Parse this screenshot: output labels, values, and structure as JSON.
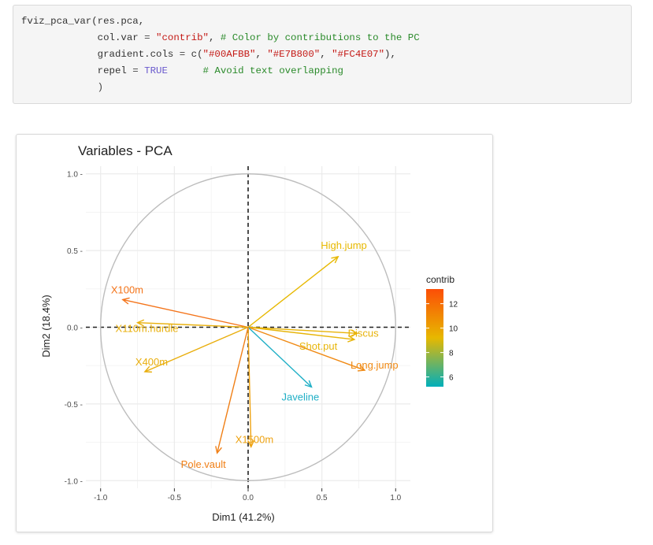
{
  "code": {
    "lines": [
      [
        {
          "t": "fviz_pca_var(res.pca,",
          "c": "fn"
        }
      ],
      [
        {
          "t": "             col.var ",
          "c": "fn"
        },
        {
          "t": "= ",
          "c": "op"
        },
        {
          "t": "\"contrib\"",
          "c": "str"
        },
        {
          "t": ", ",
          "c": "fn"
        },
        {
          "t": "# Color by contributions to the PC",
          "c": "com"
        }
      ],
      [
        {
          "t": "             gradient.cols ",
          "c": "fn"
        },
        {
          "t": "= ",
          "c": "op"
        },
        {
          "t": "c(",
          "c": "fn"
        },
        {
          "t": "\"#00AFBB\"",
          "c": "str"
        },
        {
          "t": ", ",
          "c": "fn"
        },
        {
          "t": "\"#E7B800\"",
          "c": "str"
        },
        {
          "t": ", ",
          "c": "fn"
        },
        {
          "t": "\"#FC4E07\"",
          "c": "str"
        },
        {
          "t": "),",
          "c": "fn"
        }
      ],
      [
        {
          "t": "             repel ",
          "c": "fn"
        },
        {
          "t": "= ",
          "c": "op"
        },
        {
          "t": "TRUE",
          "c": "kw"
        },
        {
          "t": "      ",
          "c": "fn"
        },
        {
          "t": "# Avoid text overlapping",
          "c": "com"
        }
      ],
      [
        {
          "t": "             )",
          "c": "op"
        }
      ]
    ]
  },
  "chart_data": {
    "type": "scatter",
    "subtype": "pca-variable-correlation-circle",
    "title": "Variables - PCA",
    "xlabel": "Dim1 (41.2%)",
    "ylabel": "Dim2 (18.4%)",
    "xlim": [
      -1.1,
      1.1
    ],
    "ylim": [
      -1.05,
      1.05
    ],
    "x_ticks": [
      -1.0,
      -0.5,
      0.0,
      0.5,
      1.0
    ],
    "x_tick_labels": [
      "-1.0",
      "-0.5",
      "0.0",
      "0.5",
      "1.0"
    ],
    "y_ticks": [
      1.0,
      0.5,
      0.0,
      -0.5,
      -1.0
    ],
    "y_tick_labels": [
      "1.0 -",
      "0.5 -",
      "0.0 -",
      "-0.5 -",
      "-1.0 -"
    ],
    "grid": true,
    "unit_circle": true,
    "reference_lines": "dashed x=0 and y=0",
    "color_gradient": [
      "#00AFBB",
      "#E7B800",
      "#FC4E07"
    ],
    "contrib_range": [
      5.2,
      13.2
    ],
    "legend": {
      "title": "contrib",
      "position": "right",
      "ticks": [
        12,
        10,
        8,
        6
      ],
      "tick_labels": [
        "12",
        "10",
        "8",
        "6"
      ]
    },
    "variables": [
      {
        "name": "X100m",
        "x": -0.85,
        "y": 0.18,
        "contrib": 12.1,
        "color": "#F4741A"
      },
      {
        "name": "X110m.hurdle",
        "x": -0.75,
        "y": 0.03,
        "contrib": 9.5,
        "color": "#E9B00C"
      },
      {
        "name": "X400m",
        "x": -0.7,
        "y": -0.29,
        "contrib": 9.6,
        "color": "#E9AE0C"
      },
      {
        "name": "High.jump",
        "x": 0.61,
        "y": 0.46,
        "contrib": 8.2,
        "color": "#E7B800"
      },
      {
        "name": "Discus",
        "x": 0.74,
        "y": -0.04,
        "contrib": 9.1,
        "color": "#E8B309"
      },
      {
        "name": "Shot.put",
        "x": 0.72,
        "y": -0.08,
        "contrib": 8.9,
        "color": "#E7B50A"
      },
      {
        "name": "Long.jump",
        "x": 0.79,
        "y": -0.28,
        "contrib": 11.5,
        "color": "#F08A14"
      },
      {
        "name": "Javeline",
        "x": 0.43,
        "y": -0.39,
        "contrib": 5.6,
        "color": "#1FAFC6"
      },
      {
        "name": "X1500m",
        "x": 0.02,
        "y": -0.78,
        "contrib": 10.6,
        "color": "#EEA210"
      },
      {
        "name": "Pole.vault",
        "x": -0.21,
        "y": -0.82,
        "contrib": 11.3,
        "color": "#F07F16"
      }
    ]
  }
}
